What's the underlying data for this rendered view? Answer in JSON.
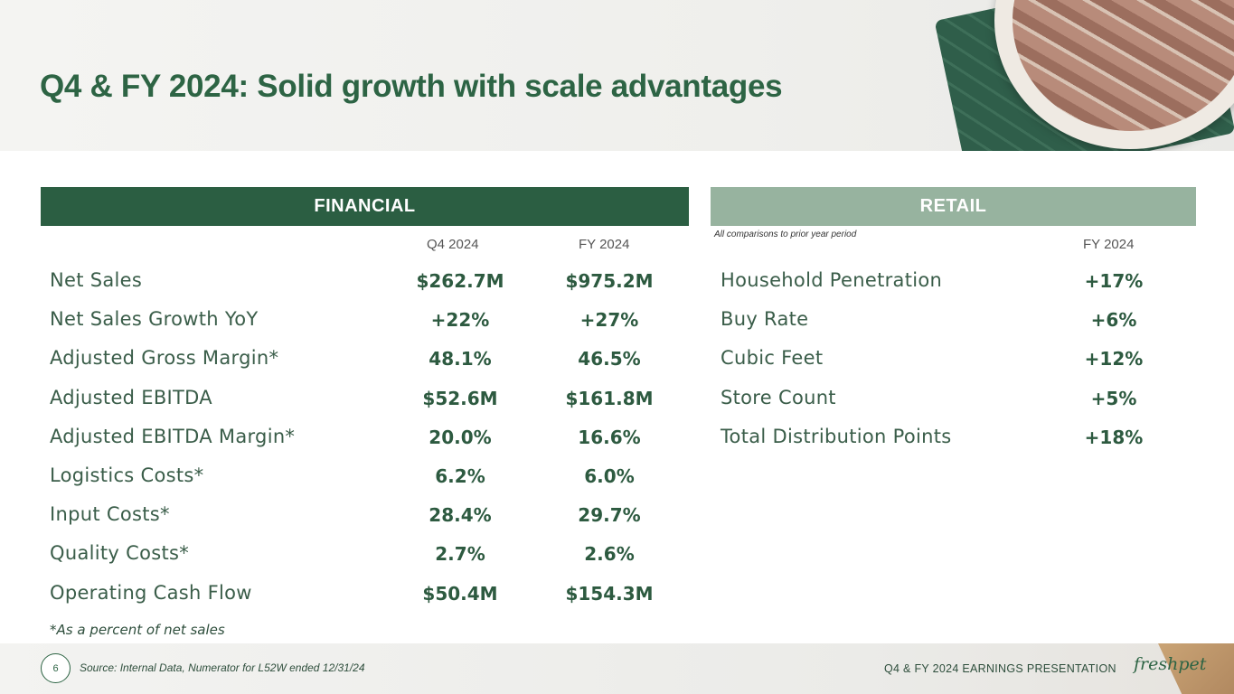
{
  "slide": {
    "title": "Q4 & FY 2024: Solid growth with scale advantages",
    "page_number": "6",
    "source": "Source: Internal Data, Numerator for L52W ended 12/31/24",
    "presentation_name": "Q4 & FY 2024 EARNINGS PRESENTATION",
    "logo_text": "freshpet"
  },
  "financial": {
    "header": "FINANCIAL",
    "col1": "Q4 2024",
    "col2": "FY 2024",
    "rows": [
      {
        "label": "Net Sales",
        "q4": "$262.7M",
        "fy": "$975.2M"
      },
      {
        "label": "Net Sales Growth YoY",
        "q4": "+22%",
        "fy": "+27%"
      },
      {
        "label": "Adjusted Gross Margin*",
        "q4": "48.1%",
        "fy": "46.5%"
      },
      {
        "label": "Adjusted EBITDA",
        "q4": "$52.6M",
        "fy": "$161.8M"
      },
      {
        "label": "Adjusted EBITDA Margin*",
        "q4": "20.0%",
        "fy": "16.6%"
      },
      {
        "label": "Logistics Costs*",
        "q4": "6.2%",
        "fy": "6.0%"
      },
      {
        "label": "Input Costs*",
        "q4": "28.4%",
        "fy": "29.7%"
      },
      {
        "label": "Quality Costs*",
        "q4": "2.7%",
        "fy": "2.6%"
      },
      {
        "label": "Operating Cash Flow",
        "q4": "$50.4M",
        "fy": "$154.3M"
      }
    ],
    "footnote": "*As a percent of net sales"
  },
  "retail": {
    "header": "RETAIL",
    "note": "All comparisons to prior year period",
    "col1": "FY 2024",
    "rows": [
      {
        "label": "Household Penetration",
        "fy": "+17%"
      },
      {
        "label": "Buy Rate",
        "fy": "+6%"
      },
      {
        "label": "Cubic Feet",
        "fy": "+12%"
      },
      {
        "label": "Store Count",
        "fy": "+5%"
      },
      {
        "label": "Total Distribution Points",
        "fy": "+18%"
      }
    ]
  },
  "colors": {
    "primary_green": "#2b5e42",
    "retail_green": "#97b39f"
  }
}
